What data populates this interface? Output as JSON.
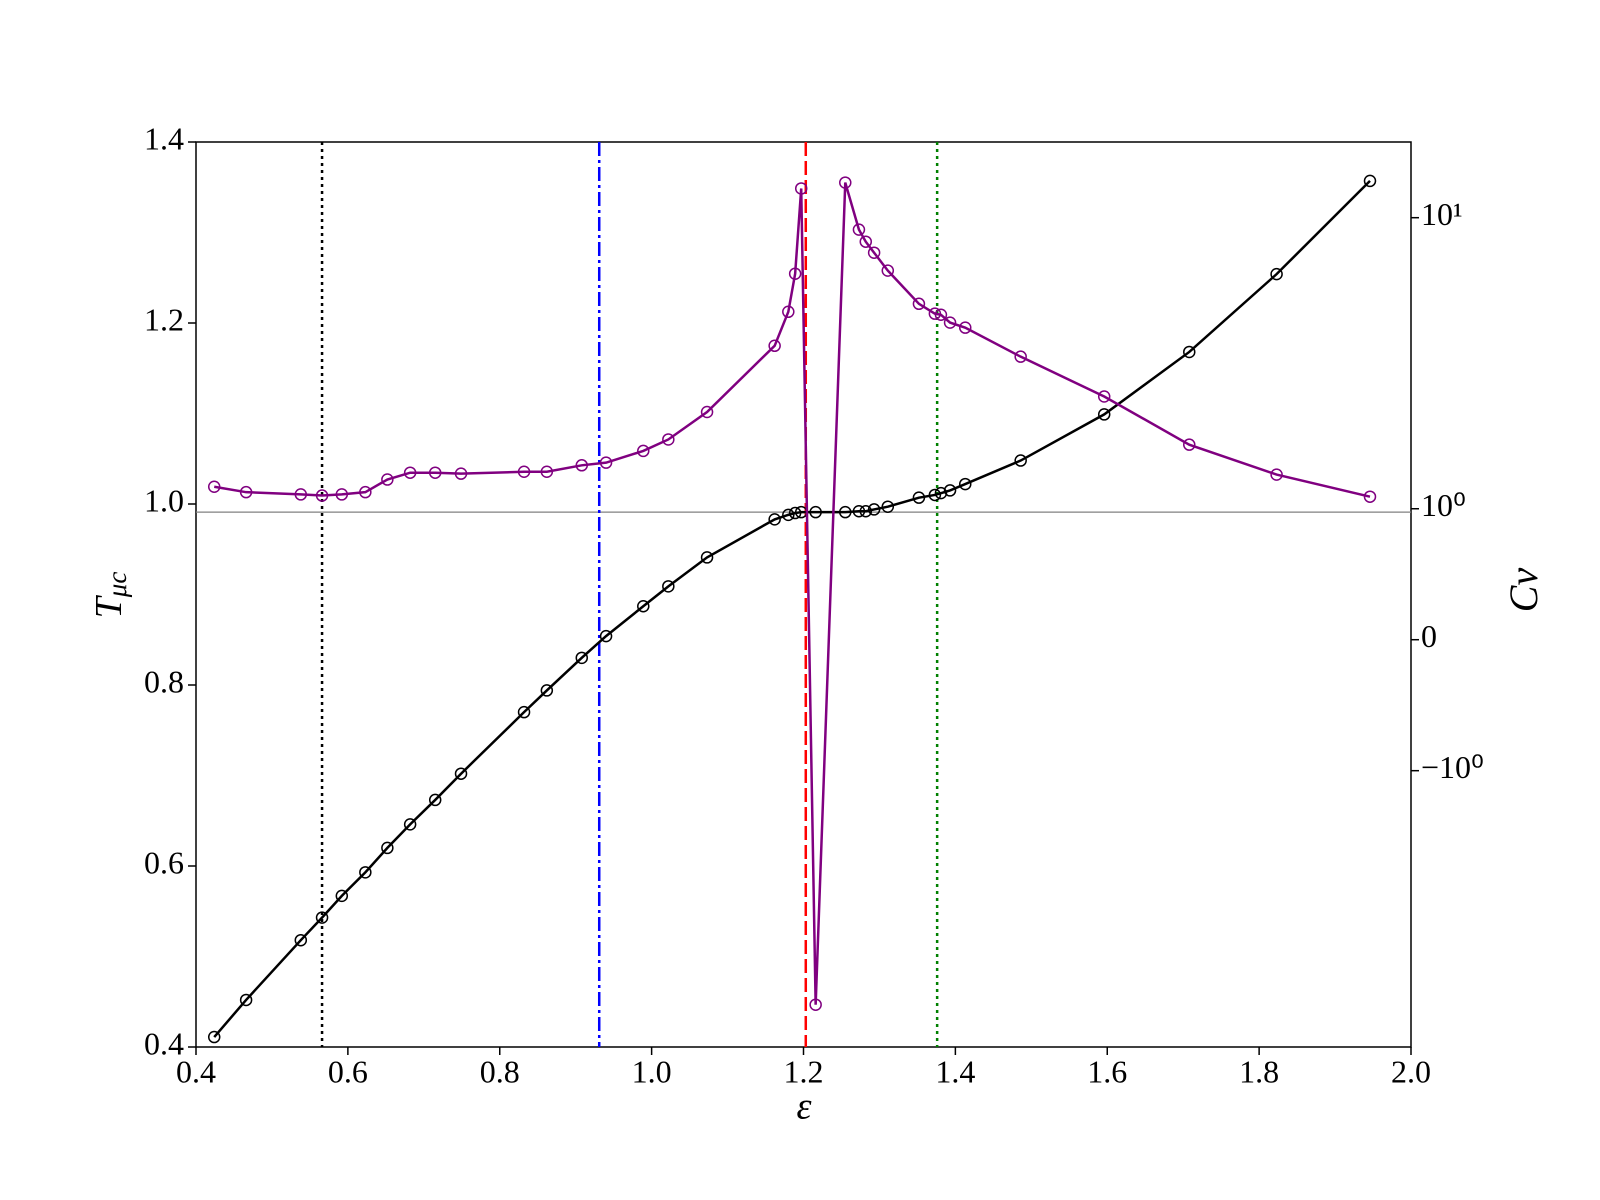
{
  "chart_data": {
    "type": "line",
    "xlabel": "ε",
    "ylabel": [
      "T",
      "μc"
    ],
    "y2label": "Cv",
    "y2scale": "symlog",
    "x": [
      0.424,
      0.466,
      0.538,
      0.566,
      0.592,
      0.623,
      0.652,
      0.682,
      0.715,
      0.749,
      0.832,
      0.862,
      0.908,
      0.94,
      0.989,
      1.022,
      1.073,
      1.162,
      1.18,
      1.189,
      1.197,
      1.216,
      1.255,
      1.273,
      1.282,
      1.293,
      1.311,
      1.352,
      1.373,
      1.381,
      1.393,
      1.413,
      1.486,
      1.596,
      1.708,
      1.823,
      1.946
    ],
    "series": [
      {
        "color": "#000000",
        "axis": "y",
        "values": [
          0.411,
          0.452,
          0.518,
          0.543,
          0.567,
          0.593,
          0.62,
          0.646,
          0.673,
          0.702,
          0.77,
          0.794,
          0.83,
          0.854,
          0.887,
          0.909,
          0.941,
          0.983,
          0.988,
          0.99,
          0.991,
          0.991,
          0.991,
          0.992,
          0.992,
          0.994,
          0.997,
          1.007,
          1.01,
          1.012,
          1.015,
          1.022,
          1.048,
          1.099,
          1.168,
          1.254,
          1.357
        ]
      },
      {
        "color": "#800080",
        "axis": "y2",
        "values": [
          1.19,
          1.14,
          1.12,
          1.11,
          1.12,
          1.14,
          1.26,
          1.33,
          1.33,
          1.32,
          1.34,
          1.34,
          1.41,
          1.44,
          1.58,
          1.73,
          2.15,
          3.63,
          4.75,
          6.42,
          12.6,
          -6.37,
          13.2,
          9.1,
          8.27,
          7.58,
          6.58,
          5.06,
          4.68,
          4.64,
          4.36,
          4.19,
          3.33,
          2.43,
          1.66,
          1.31,
          1.1
        ]
      }
    ],
    "vlines": [
      {
        "x": 0.566,
        "color": "#000000",
        "style": "dotted"
      },
      {
        "x": 0.931,
        "color": "#0000ff",
        "style": "dashdot"
      },
      {
        "x": 1.203,
        "color": "#ff0000",
        "style": "dashed"
      },
      {
        "x": 1.376,
        "color": "#008000",
        "style": "dotted"
      }
    ],
    "hline": {
      "y": 0.991,
      "color": "#808080"
    },
    "xlim": [
      0.4,
      2.0
    ],
    "xticks": [
      0.4,
      0.6,
      0.8,
      {
        "value": 1.0,
        "label": "1.0"
      },
      1.2,
      1.4,
      1.6,
      1.8,
      {
        "value": 2.0,
        "label": "2.0"
      }
    ],
    "ylim": [
      0.4,
      1.4
    ],
    "yticks": [
      0.4,
      0.6,
      0.8,
      {
        "value": 1.0,
        "label": "1.0"
      },
      1.2,
      1.4
    ],
    "y2lim": [
      -8.9,
      18.2
    ],
    "y2ticks": [
      {
        "value": -1,
        "label": "−10⁰"
      },
      0,
      {
        "value": 1,
        "label": "10⁰"
      },
      {
        "value": 10,
        "label": "10¹"
      }
    ]
  }
}
